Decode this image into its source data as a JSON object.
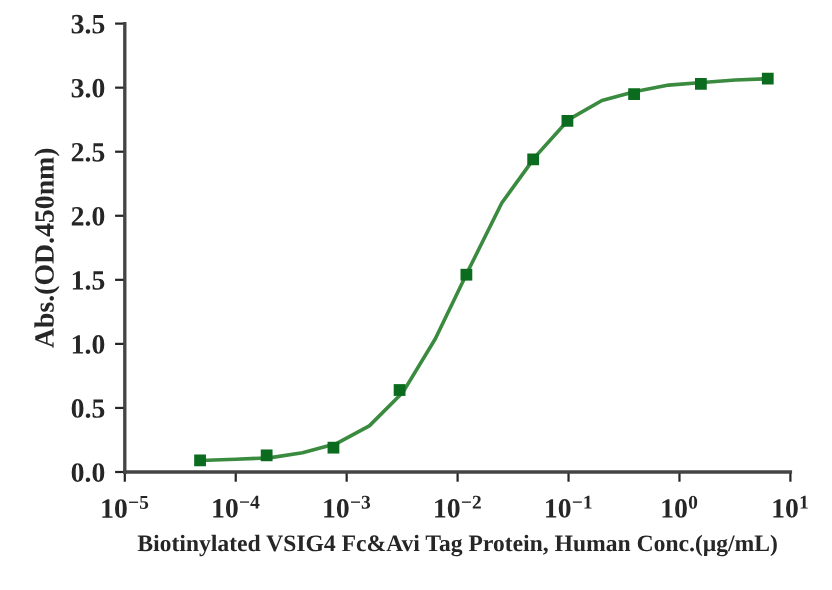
{
  "chart_data": {
    "type": "scatter",
    "xlabel": "Biotinylated VSIG4 Fc&Avi Tag Protein, Human Conc.(μg/mL)",
    "ylabel": "Abs.(OD.450nm)",
    "log": "x",
    "grid": false,
    "xlim": [
      1e-05,
      10
    ],
    "ylim": [
      0,
      3.5
    ],
    "xticks": [
      {
        "value": 1e-05,
        "label": "10$^{−5}$"
      },
      {
        "value": 0.0001,
        "label": "10$^{−4}$"
      },
      {
        "value": 0.001,
        "label": "10$^{−3}$"
      },
      {
        "value": 0.01,
        "label": "10$^{−2}$"
      },
      {
        "value": 0.1,
        "label": "10$^{−1}$"
      },
      {
        "value": 1,
        "label": "10$^{0}$"
      },
      {
        "value": 10,
        "label": "10$^{1}$"
      }
    ],
    "yticks": [
      {
        "value": 0,
        "label": "0.0"
      },
      0.5,
      {
        "value": 1,
        "label": "1.0"
      },
      1.5,
      {
        "value": 2,
        "label": "2.0"
      },
      2.5,
      {
        "value": 3,
        "label": "3.0"
      },
      3.5
    ],
    "series": [
      {
        "marker": "square",
        "color": "#0b6b1e",
        "x": [
          4.77e-05,
          0.00019,
          0.00076,
          0.003,
          0.012,
          0.048,
          0.0977,
          0.39,
          1.56,
          6.25
        ],
        "values": [
          0.09,
          0.13,
          0.19,
          0.64,
          1.54,
          2.44,
          2.74,
          2.95,
          3.03,
          3.07
        ]
      },
      {
        "type": "line",
        "marker": "none",
        "line_style": "solid",
        "color": "#3a8a3f",
        "x": [
          4.77e-05,
          0.0001,
          0.0002,
          0.0004,
          0.0008,
          0.0016,
          0.0032,
          0.0063,
          0.0126,
          0.025,
          0.05,
          0.1,
          0.2,
          0.4,
          0.8,
          1.6,
          3.2,
          6.25
        ],
        "values": [
          0.09,
          0.1,
          0.11,
          0.15,
          0.22,
          0.36,
          0.62,
          1.04,
          1.58,
          2.1,
          2.46,
          2.75,
          2.9,
          2.97,
          3.02,
          3.04,
          3.06,
          3.07
        ]
      }
    ]
  }
}
